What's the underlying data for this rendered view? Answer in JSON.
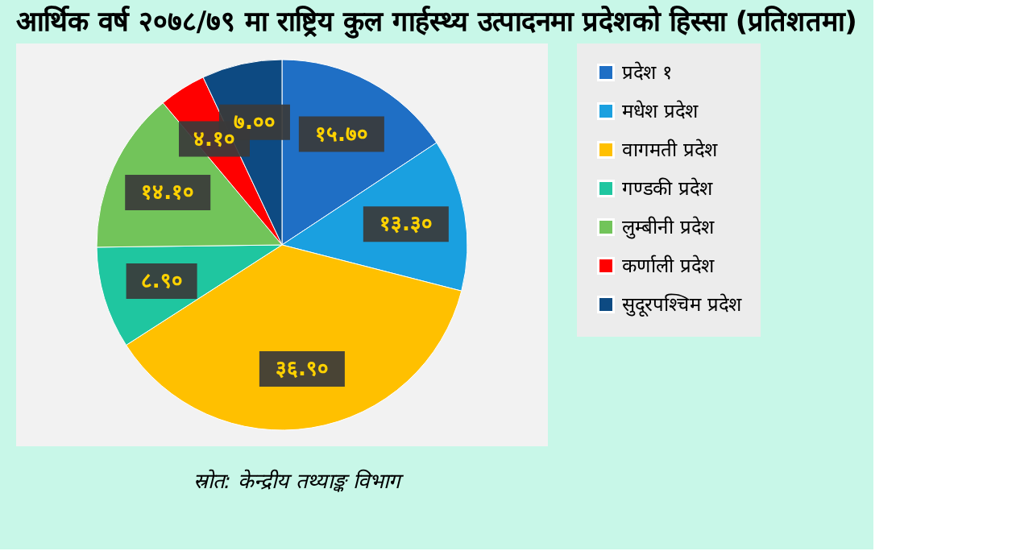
{
  "chart_data": {
    "type": "pie",
    "title": "आर्थिक वर्ष २०७८/७९ मा राष्ट्रिय कुल गार्हस्थ्य उत्पादनमा प्रदेशको हिस्सा (प्रतिशतमा)",
    "categories": [
      "प्रदेश १",
      "मधेश प्रदेश",
      "वागमती प्रदेश",
      "गण्डकी प्रदेश",
      "लुम्बीनी प्रदेश",
      "कर्णाली प्रदेश",
      "सुदूरपश्चिम प्रदेश"
    ],
    "values": [
      15.7,
      13.3,
      36.9,
      8.9,
      14.1,
      4.1,
      7.0
    ],
    "value_labels": [
      "१५.७०",
      "१३.३०",
      "३६.९०",
      "८.९०",
      "१४.१०",
      "४.१०",
      "७.००"
    ],
    "colors": [
      "#1f6fc5",
      "#1aa0e0",
      "#ffc000",
      "#1fc6a0",
      "#72c45a",
      "#ff0000",
      "#0d4a82"
    ],
    "legend": "right",
    "annotations": [
      "स्रोत: केन्द्रीय तथ्याङ्क विभाग"
    ]
  }
}
